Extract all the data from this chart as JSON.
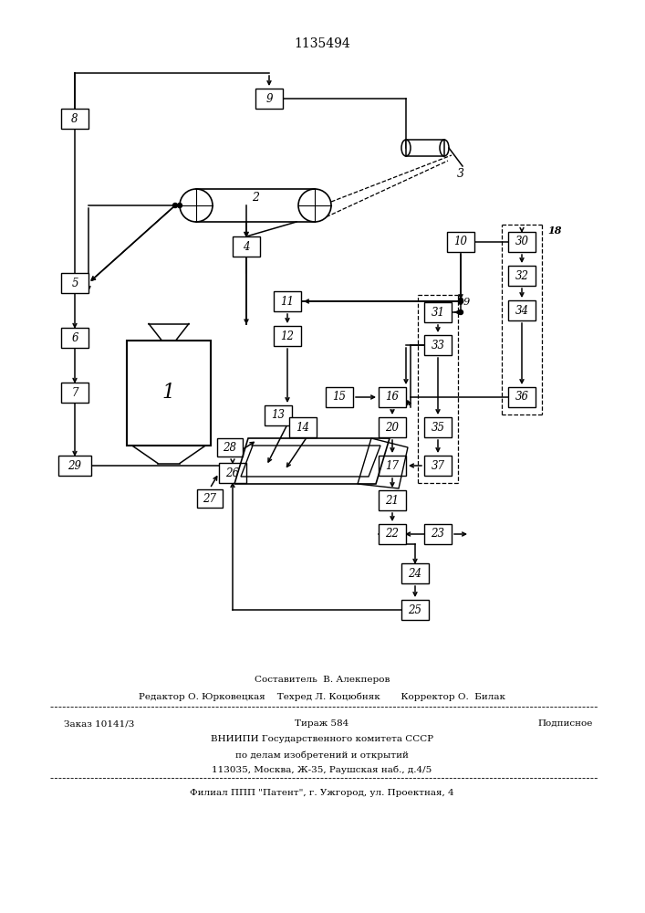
{
  "title": "1135494",
  "bg_color": "#ffffff",
  "fig_width": 7.07,
  "fig_height": 10.0,
  "footer": {
    "line1": "Составитель  В. Алекперов",
    "line2": "Редактор О. Юрковецкая    Техред Л. Коцюбняк       Корректор О.  Билак",
    "line3_left": "Заказ 10141/3",
    "line3_mid": "Тираж 584",
    "line3_right": "Подписное",
    "line4": "ВНИИПИ Государственного комитета СССР",
    "line5": "по делам изобретений и открытий",
    "line6": "113035, Москва, Ж-35, Раушская наб., д.4/5",
    "line7": "Филиал ППП \"Патент\", г. Ужгород, ул. Проектная, 4"
  }
}
